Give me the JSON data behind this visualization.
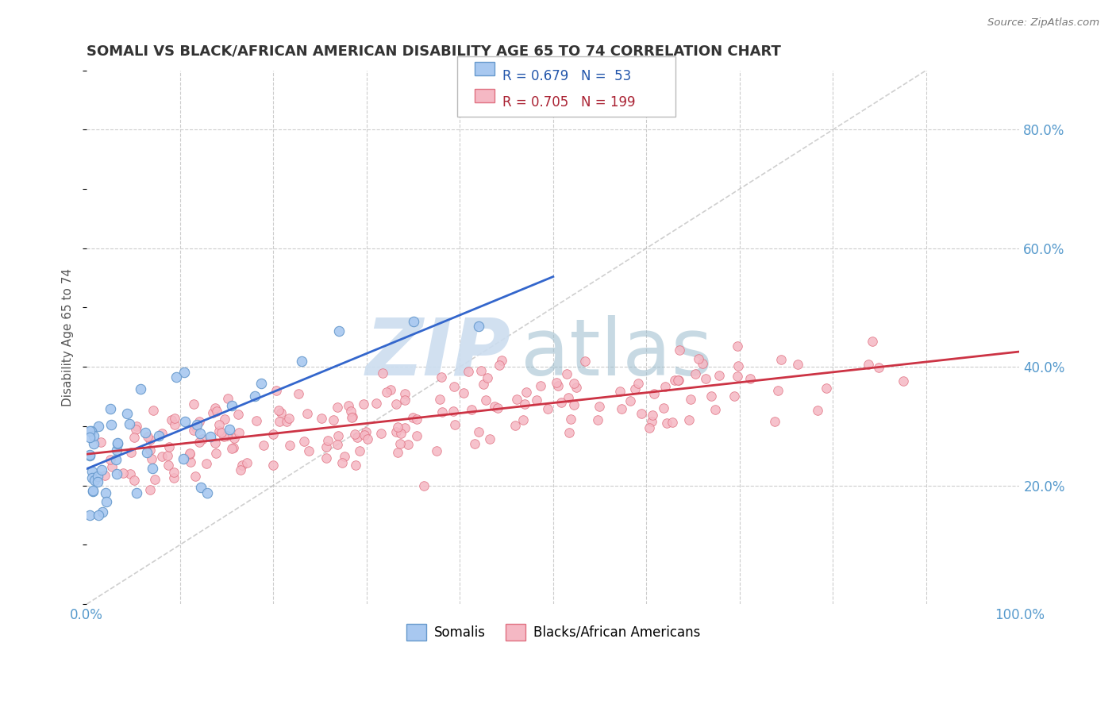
{
  "title": "SOMALI VS BLACK/AFRICAN AMERICAN DISABILITY AGE 65 TO 74 CORRELATION CHART",
  "source": "Source: ZipAtlas.com",
  "ylabel": "Disability Age 65 to 74",
  "xlim": [
    0.0,
    1.0
  ],
  "ylim": [
    0.0,
    0.9
  ],
  "y_ticks_right": [
    0.2,
    0.4,
    0.6,
    0.8
  ],
  "y_tick_labels_right": [
    "20.0%",
    "40.0%",
    "60.0%",
    "80.0%"
  ],
  "somali_color": "#a8c8f0",
  "somali_edge_color": "#6699cc",
  "black_color": "#f5b8c4",
  "black_edge_color": "#e07080",
  "somali_line_color": "#3366cc",
  "black_line_color": "#cc3344",
  "somali_R": 0.679,
  "somali_N": 53,
  "black_R": 0.705,
  "black_N": 199,
  "legend_label_somali": "Somalis",
  "legend_label_black": "Blacks/African Americans",
  "background_color": "#ffffff",
  "grid_color": "#cccccc",
  "diag_color": "#bbbbbb",
  "tick_color": "#5599cc",
  "title_color": "#333333",
  "source_color": "#777777",
  "ylabel_color": "#555555",
  "watermark_zip_color": "#ccddef",
  "watermark_atlas_color": "#99bbcc"
}
